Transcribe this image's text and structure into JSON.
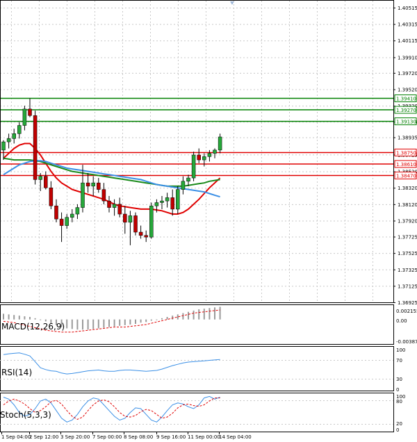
{
  "colors": {
    "background": "#ffffff",
    "grid": "#c8c8c8",
    "axis": "#000000",
    "bull_candle": "#26a83a",
    "bear_candle": "#c00000",
    "red_ma": "#e00000",
    "green_ma": "#1a8a1a",
    "blue_ma": "#3a8fe6",
    "macd_bars": "#9a9a9a",
    "macd_signal": "#e00000",
    "rsi_line": "#3a8fe6",
    "stoch_main": "#3a8fe6",
    "stoch_signal": "#e00000",
    "level_green": "#008000",
    "level_red": "#e00000",
    "marker_arrow": "#a0b8d8"
  },
  "main_panel": {
    "price_labels": [
      "1.40515",
      "1.40315",
      "1.40115",
      "1.39910",
      "1.39720",
      "1.39520",
      "1.39320",
      "1.39125",
      "1.38935",
      "1.38725",
      "1.38520",
      "1.38320",
      "1.38120",
      "1.37920",
      "1.37725",
      "1.37525",
      "1.37325",
      "1.37125",
      "1.36925"
    ],
    "level_lines": [
      {
        "label": "1.39410",
        "value": 1.3941,
        "kind": "green"
      },
      {
        "label": "1.39270",
        "value": 1.3927,
        "kind": "green"
      },
      {
        "label": "1.39130",
        "value": 1.3913,
        "kind": "green"
      },
      {
        "label": "1.38750",
        "value": 1.3875,
        "kind": "red"
      },
      {
        "label": "1.38610",
        "value": 1.3861,
        "kind": "red"
      },
      {
        "label": "1.38470",
        "value": 1.3847,
        "kind": "red"
      }
    ]
  },
  "macd_panel": {
    "label": "MACD(12,26,9)",
    "scale_labels": [
      "0.002155",
      "0.00",
      "-0.003871"
    ]
  },
  "rsi_panel": {
    "label": "RSI(14)",
    "scale_labels": [
      "100",
      "70",
      "30",
      "0"
    ]
  },
  "stoch_panel": {
    "label": "Stoch(5,3,3)",
    "scale_labels": [
      "100",
      "80",
      "20",
      "0"
    ]
  },
  "time_axis": {
    "labels": [
      "1 Sep 04:00",
      "2 Sep 12:00",
      "3 Sep 20:00",
      "7 Sep 00:00",
      "8 Sep 08:00",
      "9 Sep 16:00",
      "11 Sep 00:00",
      "14 Sep 04:00"
    ]
  },
  "chart_data": {
    "type": "candlestick",
    "price_scale": [
      1.36925,
      1.40515
    ],
    "candles": [
      [
        1.3878,
        1.389,
        1.3866,
        1.3888
      ],
      [
        1.3888,
        1.3898,
        1.388,
        1.3892
      ],
      [
        1.3892,
        1.3904,
        1.3886,
        1.3898
      ],
      [
        1.3898,
        1.3912,
        1.3892,
        1.3908
      ],
      [
        1.3908,
        1.3932,
        1.3902,
        1.3928
      ],
      [
        1.3928,
        1.3941,
        1.3918,
        1.392
      ],
      [
        1.392,
        1.3926,
        1.3836,
        1.3842
      ],
      [
        1.3842,
        1.385,
        1.3828,
        1.3846
      ],
      [
        1.3846,
        1.3852,
        1.383,
        1.3832
      ],
      [
        1.3832,
        1.384,
        1.3806,
        1.381
      ],
      [
        1.381,
        1.3818,
        1.379,
        1.3794
      ],
      [
        1.3794,
        1.3802,
        1.3766,
        1.3786
      ],
      [
        1.3786,
        1.38,
        1.3782,
        1.3796
      ],
      [
        1.3796,
        1.3806,
        1.379,
        1.38
      ],
      [
        1.38,
        1.3812,
        1.3794,
        1.3808
      ],
      [
        1.3808,
        1.386,
        1.3802,
        1.3838
      ],
      [
        1.3838,
        1.385,
        1.3826,
        1.3834
      ],
      [
        1.3834,
        1.3846,
        1.3822,
        1.3838
      ],
      [
        1.3838,
        1.3844,
        1.3826,
        1.383
      ],
      [
        1.383,
        1.3838,
        1.3812,
        1.3816
      ],
      [
        1.3816,
        1.3822,
        1.3802,
        1.3808
      ],
      [
        1.3808,
        1.3818,
        1.3798,
        1.3812
      ],
      [
        1.3812,
        1.382,
        1.3796,
        1.38
      ],
      [
        1.38,
        1.381,
        1.3776,
        1.379
      ],
      [
        1.379,
        1.3804,
        1.3762,
        1.3798
      ],
      [
        1.3798,
        1.3802,
        1.3774,
        1.3778
      ],
      [
        1.3778,
        1.3786,
        1.377,
        1.3774
      ],
      [
        1.3774,
        1.378,
        1.3766,
        1.3772
      ],
      [
        1.3772,
        1.3814,
        1.377,
        1.381
      ],
      [
        1.381,
        1.3818,
        1.3802,
        1.3814
      ],
      [
        1.3814,
        1.3822,
        1.3806,
        1.3816
      ],
      [
        1.3816,
        1.3826,
        1.3808,
        1.382
      ],
      [
        1.382,
        1.383,
        1.3798,
        1.3806
      ],
      [
        1.3806,
        1.3834,
        1.38,
        1.383
      ],
      [
        1.383,
        1.3846,
        1.3824,
        1.384
      ],
      [
        1.384,
        1.3848,
        1.3834,
        1.3844
      ],
      [
        1.3844,
        1.3876,
        1.384,
        1.3872
      ],
      [
        1.3872,
        1.388,
        1.3862,
        1.3866
      ],
      [
        1.3866,
        1.3874,
        1.3858,
        1.387
      ],
      [
        1.387,
        1.3878,
        1.3864,
        1.3874
      ],
      [
        1.3874,
        1.388,
        1.3868,
        1.3878
      ],
      [
        1.3878,
        1.3898,
        1.3874,
        1.3894
      ]
    ],
    "series": [
      {
        "color": "red_ma",
        "values": [
          1.3868,
          1.3874,
          1.388,
          1.3884,
          1.3886,
          1.3886,
          1.388,
          1.3872,
          1.3862,
          1.3852,
          1.3844,
          1.3838,
          1.3834,
          1.383,
          1.3828,
          1.3826,
          1.3824,
          1.3822,
          1.382,
          1.3818,
          1.3815,
          1.3812,
          1.381,
          1.3809,
          1.3808,
          1.3807,
          1.3806,
          1.3806,
          1.3806,
          1.3805,
          1.3804,
          1.3802,
          1.38,
          1.38,
          1.3802,
          1.3806,
          1.3812,
          1.3818,
          1.3825,
          1.3832,
          1.3838,
          1.3844
        ]
      },
      {
        "color": "green_ma",
        "values": [
          1.3868,
          1.3867,
          1.3866,
          1.3866,
          1.3866,
          1.3866,
          1.3865,
          1.3864,
          1.3862,
          1.386,
          1.3858,
          1.3856,
          1.3854,
          1.3852,
          1.3851,
          1.385,
          1.3849,
          1.3848,
          1.3847,
          1.3846,
          1.3845,
          1.3844,
          1.3843,
          1.3842,
          1.3841,
          1.384,
          1.3839,
          1.3838,
          1.3837,
          1.3836,
          1.3835,
          1.3834,
          1.3834,
          1.3834,
          1.3834,
          1.3835,
          1.3836,
          1.3837,
          1.3838,
          1.384,
          1.3841,
          1.3842
        ]
      },
      {
        "color": "blue_ma",
        "values": [
          1.3848,
          1.3852,
          1.3856,
          1.386,
          1.3862,
          1.3864,
          1.3865,
          1.3865,
          1.3864,
          1.3862,
          1.386,
          1.3858,
          1.3856,
          1.3855,
          1.3854,
          1.3853,
          1.3852,
          1.3851,
          1.385,
          1.3849,
          1.3848,
          1.3847,
          1.3846,
          1.3845,
          1.3844,
          1.3843,
          1.3842,
          1.384,
          1.3838,
          1.3836,
          1.3835,
          1.3834,
          1.3833,
          1.3832,
          1.3831,
          1.383,
          1.3829,
          1.3828,
          1.3827,
          1.3825,
          1.3823,
          1.3821
        ]
      }
    ],
    "macd": {
      "range": [
        -0.003871,
        0.002155
      ],
      "hist": [
        0.0009,
        0.0008,
        0.0007,
        0.0006,
        0.0005,
        0.0004,
        0.0002,
        0.0,
        -0.0003,
        -0.0006,
        -0.0009,
        -0.0012,
        -0.0014,
        -0.0015,
        -0.0016,
        -0.0016,
        -0.0016,
        -0.0015,
        -0.0014,
        -0.0013,
        -0.0012,
        -0.0011,
        -0.001,
        -0.0009,
        -0.0008,
        -0.0007,
        -0.0005,
        -0.0004,
        -0.0002,
        0.0,
        0.0002,
        0.0004,
        0.0006,
        0.0008,
        0.001,
        0.0012,
        0.0014,
        0.0016,
        0.0017,
        0.0018,
        0.0019,
        0.002
      ],
      "signal": [
        -0.0003,
        -0.0004,
        -0.0005,
        -0.0007,
        -0.0009,
        -0.0011,
        -0.0013,
        -0.0015,
        -0.0017,
        -0.0018,
        -0.0019,
        -0.002,
        -0.002,
        -0.002,
        -0.0019,
        -0.0018,
        -0.0017,
        -0.0016,
        -0.0015,
        -0.0014,
        -0.0013,
        -0.0012,
        -0.0012,
        -0.0012,
        -0.0011,
        -0.001,
        -0.0009,
        -0.0008,
        -0.0006,
        -0.0004,
        -0.0002,
        0.0,
        0.0002,
        0.0004,
        0.0006,
        0.0008,
        0.001,
        0.0011,
        0.0012,
        0.0013,
        0.0014,
        0.0015
      ]
    },
    "rsi": [
      82,
      84,
      85,
      86,
      83,
      79,
      66,
      52,
      48,
      45,
      44,
      40,
      38,
      39,
      41,
      43,
      45,
      46,
      47,
      45,
      44,
      44,
      46,
      47,
      47,
      46,
      45,
      44,
      45,
      46,
      49,
      53,
      57,
      60,
      63,
      65,
      66,
      67,
      68,
      69,
      70,
      71
    ],
    "stoch_main": [
      90,
      85,
      70,
      50,
      40,
      45,
      60,
      80,
      85,
      75,
      55,
      35,
      25,
      30,
      45,
      65,
      80,
      88,
      85,
      70,
      55,
      40,
      30,
      35,
      50,
      62,
      60,
      45,
      30,
      25,
      38,
      55,
      70,
      75,
      72,
      65,
      60,
      70,
      88,
      92,
      85,
      90
    ],
    "stoch_signal": [
      70,
      80,
      85,
      80,
      72,
      60,
      50,
      55,
      65,
      78,
      82,
      72,
      55,
      40,
      32,
      38,
      55,
      70,
      80,
      83,
      78,
      65,
      50,
      40,
      38,
      42,
      52,
      58,
      55,
      45,
      35,
      38,
      48,
      62,
      70,
      72,
      68,
      66,
      70,
      80,
      88,
      88
    ]
  }
}
